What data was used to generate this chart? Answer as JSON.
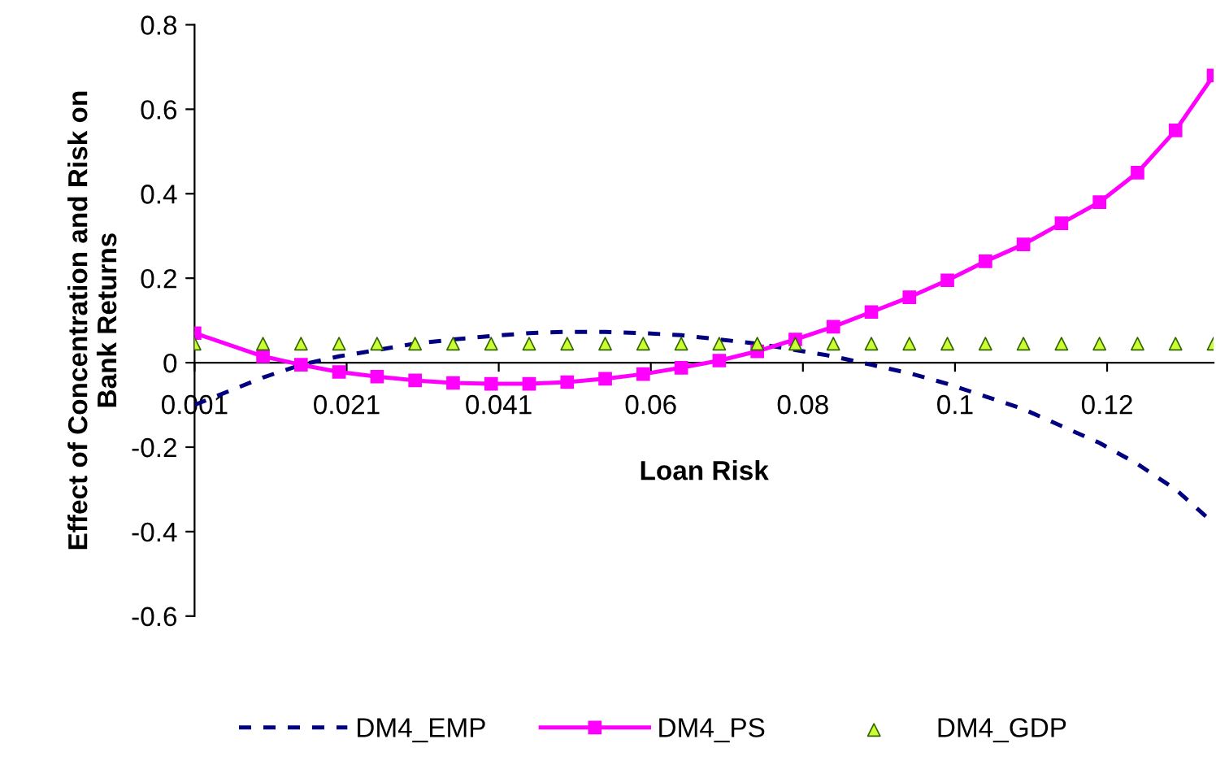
{
  "chart_data": {
    "type": "line",
    "xlabel": "Loan Risk",
    "ylabel": "Effect of Concentration and Risk on\nBank Returns",
    "x": [
      0.001,
      0.01,
      0.015,
      0.02,
      0.025,
      0.03,
      0.035,
      0.04,
      0.045,
      0.05,
      0.055,
      0.06,
      0.065,
      0.07,
      0.075,
      0.08,
      0.085,
      0.09,
      0.095,
      0.1,
      0.105,
      0.11,
      0.115,
      0.12,
      0.125,
      0.13,
      0.135
    ],
    "series": [
      {
        "name": "DM4_EMP",
        "color": "#000080",
        "line_style": "dashed",
        "marker": "none",
        "values": [
          -0.1,
          -0.035,
          -0.005,
          0.015,
          0.03,
          0.045,
          0.055,
          0.063,
          0.07,
          0.073,
          0.073,
          0.07,
          0.065,
          0.055,
          0.045,
          0.03,
          0.015,
          -0.005,
          -0.025,
          -0.05,
          -0.08,
          -0.11,
          -0.15,
          -0.19,
          -0.24,
          -0.3,
          -0.38
        ]
      },
      {
        "name": "DM4_PS",
        "color": "#ff00ff",
        "line_style": "solid",
        "marker": "square",
        "values": [
          0.07,
          0.015,
          -0.005,
          -0.022,
          -0.033,
          -0.042,
          -0.048,
          -0.05,
          -0.05,
          -0.046,
          -0.038,
          -0.027,
          -0.012,
          0.005,
          0.027,
          0.055,
          0.085,
          0.12,
          0.155,
          0.195,
          0.24,
          0.28,
          0.33,
          0.38,
          0.45,
          0.55,
          0.68
        ]
      },
      {
        "name": "DM4_GDP",
        "type": "scatter",
        "color": "#ccff33",
        "marker": "triangle",
        "values": [
          0.045,
          0.045,
          0.045,
          0.045,
          0.045,
          0.045,
          0.045,
          0.045,
          0.045,
          0.045,
          0.045,
          0.045,
          0.045,
          0.045,
          0.045,
          0.045,
          0.045,
          0.045,
          0.045,
          0.045,
          0.045,
          0.045,
          0.045,
          0.045,
          0.045,
          0.045,
          0.045
        ]
      }
    ],
    "xlim": [
      0.001,
      0.135
    ],
    "xticks": [
      {
        "value": 0.001,
        "label": "0.001"
      },
      {
        "value": 0.021,
        "label": "0.021"
      },
      {
        "value": 0.041,
        "label": "0.041"
      },
      {
        "value": 0.061,
        "label": "0.06"
      },
      {
        "value": 0.081,
        "label": "0.08"
      },
      {
        "value": 0.101,
        "label": "0.1"
      },
      {
        "value": 0.121,
        "label": "0.12"
      }
    ],
    "ylim": [
      -0.6,
      0.8
    ],
    "yticks": [
      {
        "value": -0.6,
        "label": "-0.6"
      },
      {
        "value": -0.4,
        "label": "-0.4"
      },
      {
        "value": -0.2,
        "label": "-0.2"
      },
      0,
      0.2,
      0.4,
      0.6,
      0.8
    ],
    "legend": "bottom",
    "grid": false
  }
}
